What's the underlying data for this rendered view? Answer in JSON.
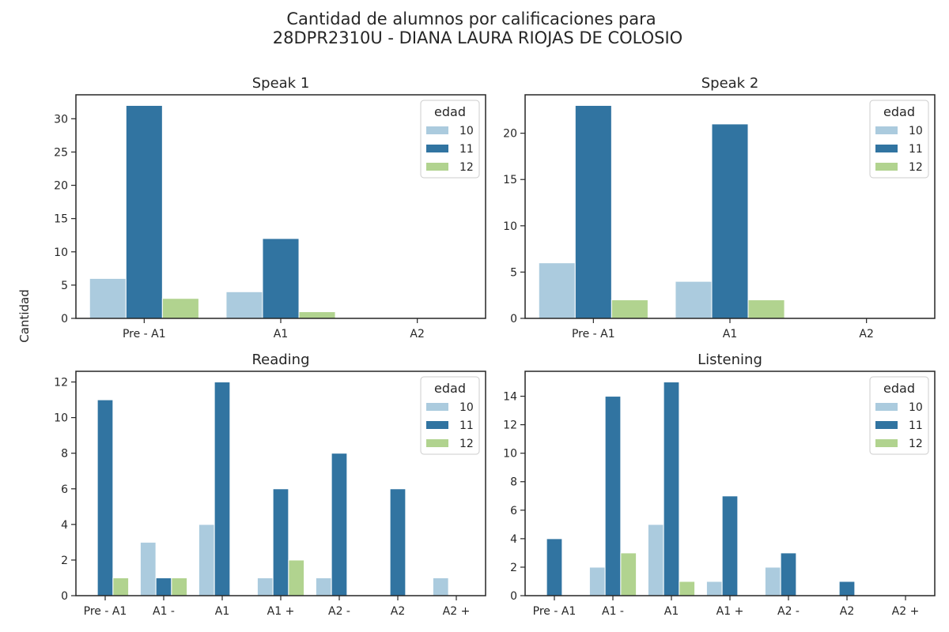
{
  "figure": {
    "title_line1": "Cantidad de alumnos por calificaciones para",
    "title_line2": "28DPR2310U - DIANA LAURA RIOJAS DE COLOSIO",
    "ylabel": "Cantidad"
  },
  "colors": {
    "10": "#abcbde",
    "11": "#3174a1",
    "12": "#b1d38f",
    "axis": "#262626"
  },
  "chart_data": [
    {
      "type": "bar",
      "title": "Speak 1",
      "categories": [
        "Pre - A1",
        "A1",
        "A2"
      ],
      "ylim": [
        0,
        33.6
      ],
      "yticks": [
        0,
        5,
        10,
        15,
        20,
        25,
        30
      ],
      "legend": {
        "title": "edad",
        "position": "upper right"
      },
      "series": [
        {
          "name": "10",
          "values": [
            6,
            4,
            0
          ]
        },
        {
          "name": "11",
          "values": [
            32,
            12,
            0
          ]
        },
        {
          "name": "12",
          "values": [
            3,
            1,
            0
          ]
        }
      ]
    },
    {
      "type": "bar",
      "title": "Speak 2",
      "categories": [
        "Pre - A1",
        "A1",
        "A2"
      ],
      "ylim": [
        0,
        24.15
      ],
      "yticks": [
        0,
        5,
        10,
        15,
        20
      ],
      "legend": {
        "title": "edad",
        "position": "upper right"
      },
      "series": [
        {
          "name": "10",
          "values": [
            6,
            4,
            0
          ]
        },
        {
          "name": "11",
          "values": [
            23,
            21,
            0
          ]
        },
        {
          "name": "12",
          "values": [
            2,
            2,
            0
          ]
        }
      ]
    },
    {
      "type": "bar",
      "title": "Reading",
      "categories": [
        "Pre - A1",
        "A1 -",
        "A1",
        "A1 +",
        "A2 -",
        "A2",
        "A2 +"
      ],
      "ylim": [
        0,
        12.6
      ],
      "yticks": [
        0,
        2,
        4,
        6,
        8,
        10,
        12
      ],
      "legend": {
        "title": "edad",
        "position": "upper right"
      },
      "series": [
        {
          "name": "10",
          "values": [
            0,
            3,
            4,
            1,
            1,
            0,
            1
          ]
        },
        {
          "name": "11",
          "values": [
            11,
            1,
            12,
            6,
            8,
            6,
            0
          ]
        },
        {
          "name": "12",
          "values": [
            1,
            1,
            0,
            2,
            0,
            0,
            0
          ]
        }
      ]
    },
    {
      "type": "bar",
      "title": "Listening",
      "categories": [
        "Pre - A1",
        "A1 -",
        "A1",
        "A1 +",
        "A2 -",
        "A2",
        "A2 +"
      ],
      "ylim": [
        0,
        15.75
      ],
      "yticks": [
        0,
        2,
        4,
        6,
        8,
        10,
        12,
        14
      ],
      "legend": {
        "title": "edad",
        "position": "upper right"
      },
      "series": [
        {
          "name": "10",
          "values": [
            0,
            2,
            5,
            1,
            2,
            0,
            0
          ]
        },
        {
          "name": "11",
          "values": [
            4,
            14,
            15,
            7,
            3,
            1,
            0
          ]
        },
        {
          "name": "12",
          "values": [
            0,
            3,
            1,
            0,
            0,
            0,
            0
          ]
        }
      ]
    }
  ]
}
